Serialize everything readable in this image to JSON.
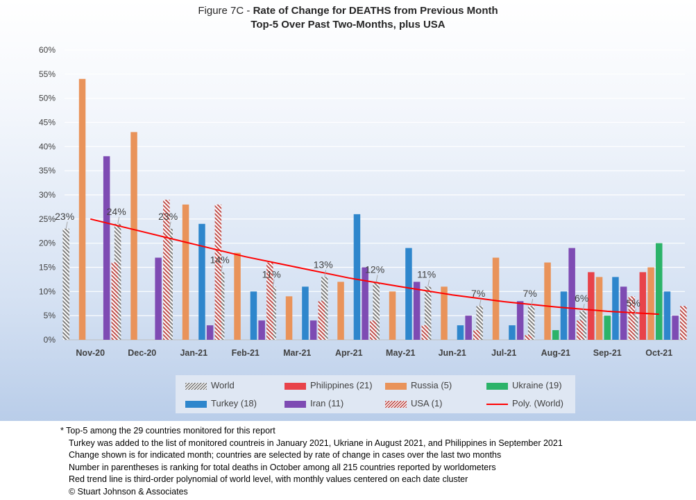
{
  "title": {
    "prefix": "Figure 7C - ",
    "main": "Rate of Change for DEATHS from Previous Month",
    "line2": "Top-5 Over Past Two-Months, plus USA"
  },
  "colors": {
    "World": "#7f7f7f",
    "Philippines": "#e8434a",
    "Russia": "#e9935a",
    "Ukraine": "#2cb369",
    "Turkey": "#2e86cc",
    "Iran": "#7e4bb3",
    "USA": "#c0504d",
    "trend": "#ff0000"
  },
  "chart_data": {
    "type": "bar",
    "categories": [
      "Nov-20",
      "Dec-20",
      "Jan-21",
      "Feb-21",
      "Mar-21",
      "Apr-21",
      "May-21",
      "Jun-21",
      "Jul-21",
      "Aug-21",
      "Sep-21",
      "Oct-21"
    ],
    "ylim": [
      0,
      60
    ],
    "yticks": [
      "0%",
      "5%",
      "10%",
      "15%",
      "20%",
      "25%",
      "30%",
      "35%",
      "40%",
      "45%",
      "50%",
      "55%",
      "60%"
    ],
    "grid": true,
    "legend_position": "bottom",
    "series": [
      {
        "name": "World",
        "key": "World",
        "pattern": "hatch",
        "values": [
          23,
          24,
          23,
          14,
          11,
          13,
          12,
          11,
          7,
          7,
          6,
          5
        ]
      },
      {
        "name": "Philippines (21)",
        "key": "Philippines",
        "values": [
          null,
          null,
          null,
          null,
          null,
          null,
          null,
          null,
          null,
          null,
          14,
          14
        ]
      },
      {
        "name": "Russia (5)",
        "key": "Russia",
        "values": [
          54,
          43,
          28,
          18,
          9,
          12,
          10,
          11,
          17,
          16,
          13,
          15
        ]
      },
      {
        "name": "Ukraine (19)",
        "key": "Ukraine",
        "values": [
          null,
          null,
          null,
          null,
          null,
          null,
          null,
          null,
          null,
          2,
          5,
          20
        ]
      },
      {
        "name": "Turkey (18)",
        "key": "Turkey",
        "values": [
          null,
          null,
          24,
          10,
          11,
          26,
          19,
          3,
          3,
          10,
          13,
          10
        ]
      },
      {
        "name": "Iran (11)",
        "key": "Iran",
        "values": [
          38,
          17,
          3,
          4,
          4,
          15,
          12,
          5,
          8,
          19,
          11,
          5
        ]
      },
      {
        "name": "USA (1)",
        "key": "USA",
        "pattern": "hatch",
        "values": [
          16,
          29,
          28,
          16,
          8,
          4,
          3,
          2,
          1,
          4,
          9,
          7
        ]
      }
    ],
    "trend": {
      "name": "Poly. (World)",
      "type": "polynomial",
      "order": 3,
      "values": [
        25,
        22.4,
        19.8,
        17.2,
        15.0,
        12.8,
        11.0,
        9.3,
        7.9,
        6.8,
        5.9,
        5.3
      ]
    },
    "data_labels": [
      "23%",
      "24%",
      "23%",
      "14%",
      "11%",
      "13%",
      "12%",
      "11%",
      "7%",
      "7%",
      "6%",
      "5%"
    ]
  },
  "legend": [
    "World",
    "Philippines (21)",
    "Russia (5)",
    "Ukraine (19)",
    "Turkey (18)",
    "Iran (11)",
    "USA (1)",
    "Poly. (World)"
  ],
  "notes": [
    "* Top-5 among the 29 countries monitored for this report",
    "Turkey was added to the list of monitored countreis in January 2021, Ukriane in August 2021, and Philippines in September 2021",
    "Change shown is for indicated month; countries are selected by rate of change in cases over the last two months",
    "Number in parentheses is ranking for total deaths in October among all 215 countries reported by worldometers",
    "Red trend line is third-order polynomial of world level, with monthly values centered on each date cluster",
    "© Stuart Johnson & Associates"
  ]
}
